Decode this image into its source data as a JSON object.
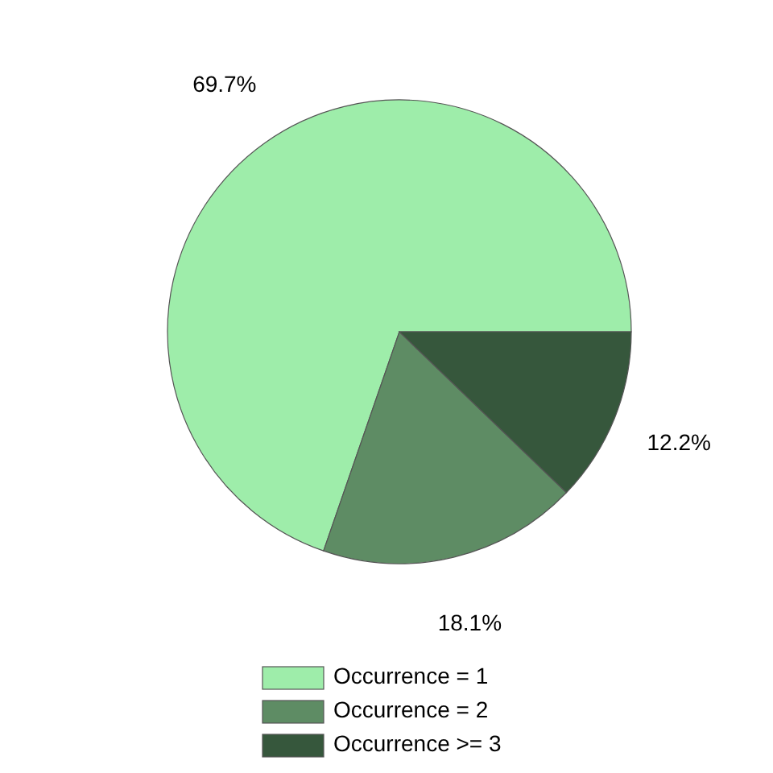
{
  "chart_data": {
    "type": "pie",
    "categories": [
      "Occurrence = 1",
      "Occurrence = 2",
      "Occurrence >= 3"
    ],
    "values": [
      69.7,
      18.1,
      12.2
    ],
    "colors": [
      "#9eedaa",
      "#5e8c64",
      "#36573c"
    ],
    "value_labels": [
      "69.7%",
      "18.1%",
      "12.2%"
    ],
    "legend": "bottom"
  }
}
